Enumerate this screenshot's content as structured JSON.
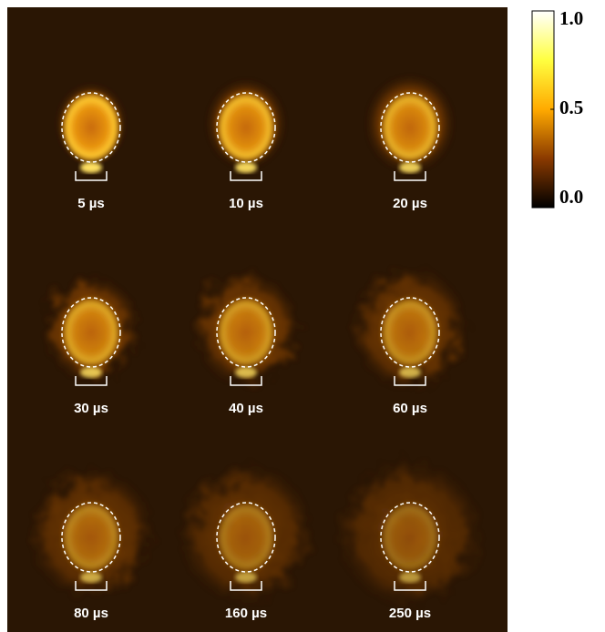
{
  "panels": [
    {
      "label": "5 µs"
    },
    {
      "label": "10 µs"
    },
    {
      "label": "20 µs"
    },
    {
      "label": "30 µs"
    },
    {
      "label": "40 µs"
    },
    {
      "label": "60 µs"
    },
    {
      "label": "80 µs"
    },
    {
      "label": "160 µs"
    },
    {
      "label": "250 µs"
    }
  ],
  "colorbar": {
    "ticks": [
      {
        "value": 1,
        "label": "1.0"
      },
      {
        "value": 0.5,
        "label": "0.5"
      },
      {
        "value": 0,
        "label": "0.0"
      }
    ]
  }
}
